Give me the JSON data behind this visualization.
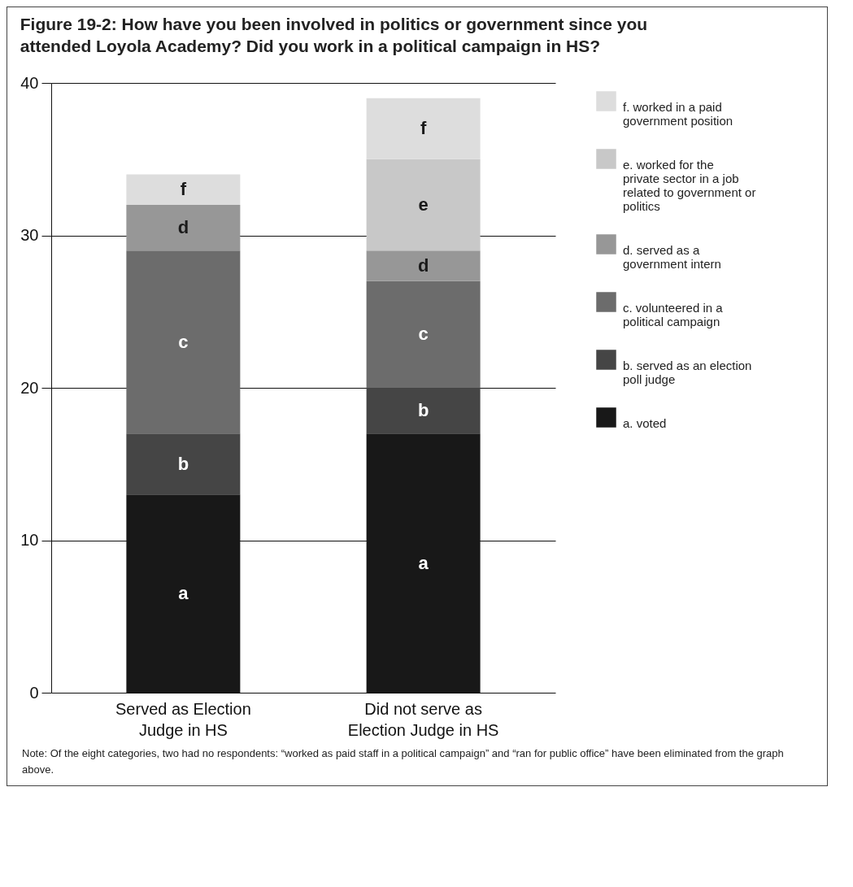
{
  "chart_data": {
    "type": "bar",
    "title": "Figure 19-2:  How have you been involved in politics or government since you attended Loyola Academy? Did you work in a political campaign in HS?",
    "categories": [
      "Served as Election Judge in HS",
      "Did not serve as Election Judge in HS"
    ],
    "stacked": true,
    "series": [
      {
        "name": "a. voted",
        "color": "#181818",
        "values": [
          13,
          17
        ],
        "value_labels": [
          "a",
          "a"
        ]
      },
      {
        "name": "b. served as an election poll judge",
        "color": "#454545",
        "values": [
          4,
          3
        ],
        "value_labels": [
          "b",
          "b"
        ]
      },
      {
        "name": "c. volunteered in a political campaign",
        "color": "#6c6c6c",
        "values": [
          12,
          7
        ],
        "value_labels": [
          "c",
          "c"
        ]
      },
      {
        "name": "d. served as a government intern",
        "color": "#979797",
        "values": [
          3,
          2
        ],
        "value_labels": [
          "d",
          "d"
        ]
      },
      {
        "name": "e. worked for the private sector in a job related to government or politics",
        "color": "#c8c8c8",
        "values": [
          0,
          6
        ],
        "value_labels": [
          null,
          "e"
        ]
      },
      {
        "name": "f. worked in a paid government position",
        "color": "#dddddd",
        "values": [
          2,
          4
        ],
        "value_labels": [
          "f",
          "f"
        ]
      }
    ],
    "ylim": [
      0,
      40
    ],
    "yticks": [
      0,
      10,
      20,
      30,
      40
    ],
    "grid": "y",
    "legend": "right",
    "annotations": [
      "Note: Of the eight categories, two had no respondents: “worked as paid staff in a political campaign” and “ran for public office” have been eliminated from the graph above."
    ]
  }
}
